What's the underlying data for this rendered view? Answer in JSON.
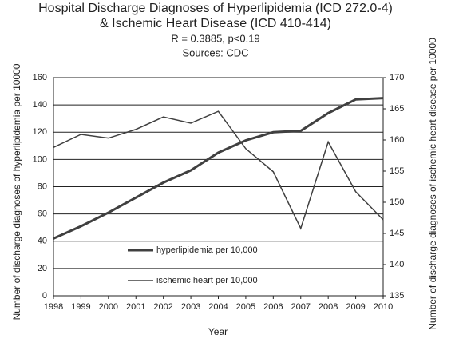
{
  "chart_data": {
    "type": "line",
    "title": [
      "Hospital Discharge Diagnoses of Hyperlipidemia (ICD 272.0-4)",
      "& Ischemic Heart Disease (ICD 410-414)"
    ],
    "subtitle": [
      "R = 0.3885, p<0.19",
      "Sources: CDC"
    ],
    "x_label": "Year",
    "y_label": "Number of discharge diagnoses of hyperlipidemia per 10000",
    "y2_label": "Number of discharge diagnoses of ischemic heart disease per 10000",
    "x": [
      1998,
      1999,
      2000,
      2001,
      2002,
      2003,
      2004,
      2005,
      2006,
      2007,
      2008,
      2009,
      2010
    ],
    "xlim": [
      1998,
      2010
    ],
    "xticks": [
      1998,
      1999,
      2000,
      2001,
      2002,
      2003,
      2004,
      2005,
      2006,
      2007,
      2008,
      2009,
      2010
    ],
    "ylim": [
      0,
      160
    ],
    "yticks": [
      0,
      20,
      40,
      60,
      80,
      100,
      120,
      140,
      160
    ],
    "y2lim": [
      135,
      170
    ],
    "y2ticks": [
      135,
      140,
      145,
      150,
      155,
      160,
      165,
      170
    ],
    "grid": true,
    "series": [
      {
        "name": "hyperlipidemia per 10,000",
        "color": "#404040",
        "width": 3,
        "values": [
          42,
          51,
          61,
          72,
          83,
          92,
          105,
          114,
          120,
          121,
          134,
          144,
          145
        ]
      },
      {
        "name": "ischemic heart per 10,000",
        "color": "#404040",
        "width": 1.5,
        "axis": "y2",
        "values": [
          158.8,
          160.9,
          160.3,
          161.7,
          163.7,
          162.7,
          164.6,
          158.6,
          154.9,
          145.8,
          159.7,
          151.7,
          147.2
        ]
      }
    ]
  }
}
